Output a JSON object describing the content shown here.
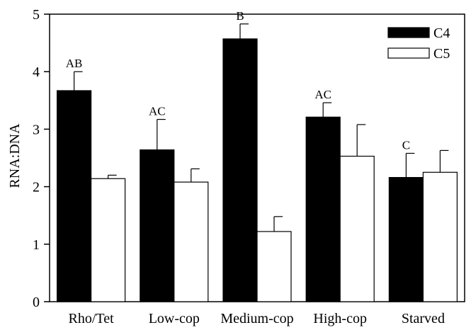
{
  "chart_data": {
    "type": "bar",
    "ylabel": "RNA:DNA",
    "xlabel": "",
    "ylim": [
      0,
      5
    ],
    "yticks": [
      0,
      1,
      2,
      3,
      4,
      5
    ],
    "categories": [
      "Rho/Tet",
      "Low-cop",
      "Medium-cop",
      "High-cop",
      "Starved"
    ],
    "series": [
      {
        "name": "C4",
        "color": "#000000",
        "values": [
          3.67,
          2.64,
          4.57,
          3.21,
          2.16
        ],
        "errors": [
          0.33,
          0.53,
          0.26,
          0.25,
          0.42
        ]
      },
      {
        "name": "C5",
        "color": "#ffffff",
        "values": [
          2.14,
          2.08,
          1.22,
          2.53,
          2.25
        ],
        "errors": [
          0.06,
          0.23,
          0.26,
          0.55,
          0.38
        ]
      }
    ],
    "significance_labels": [
      "AB",
      "AC",
      "B",
      "AC",
      "C"
    ],
    "legend_position": "top-right",
    "grid": false
  }
}
